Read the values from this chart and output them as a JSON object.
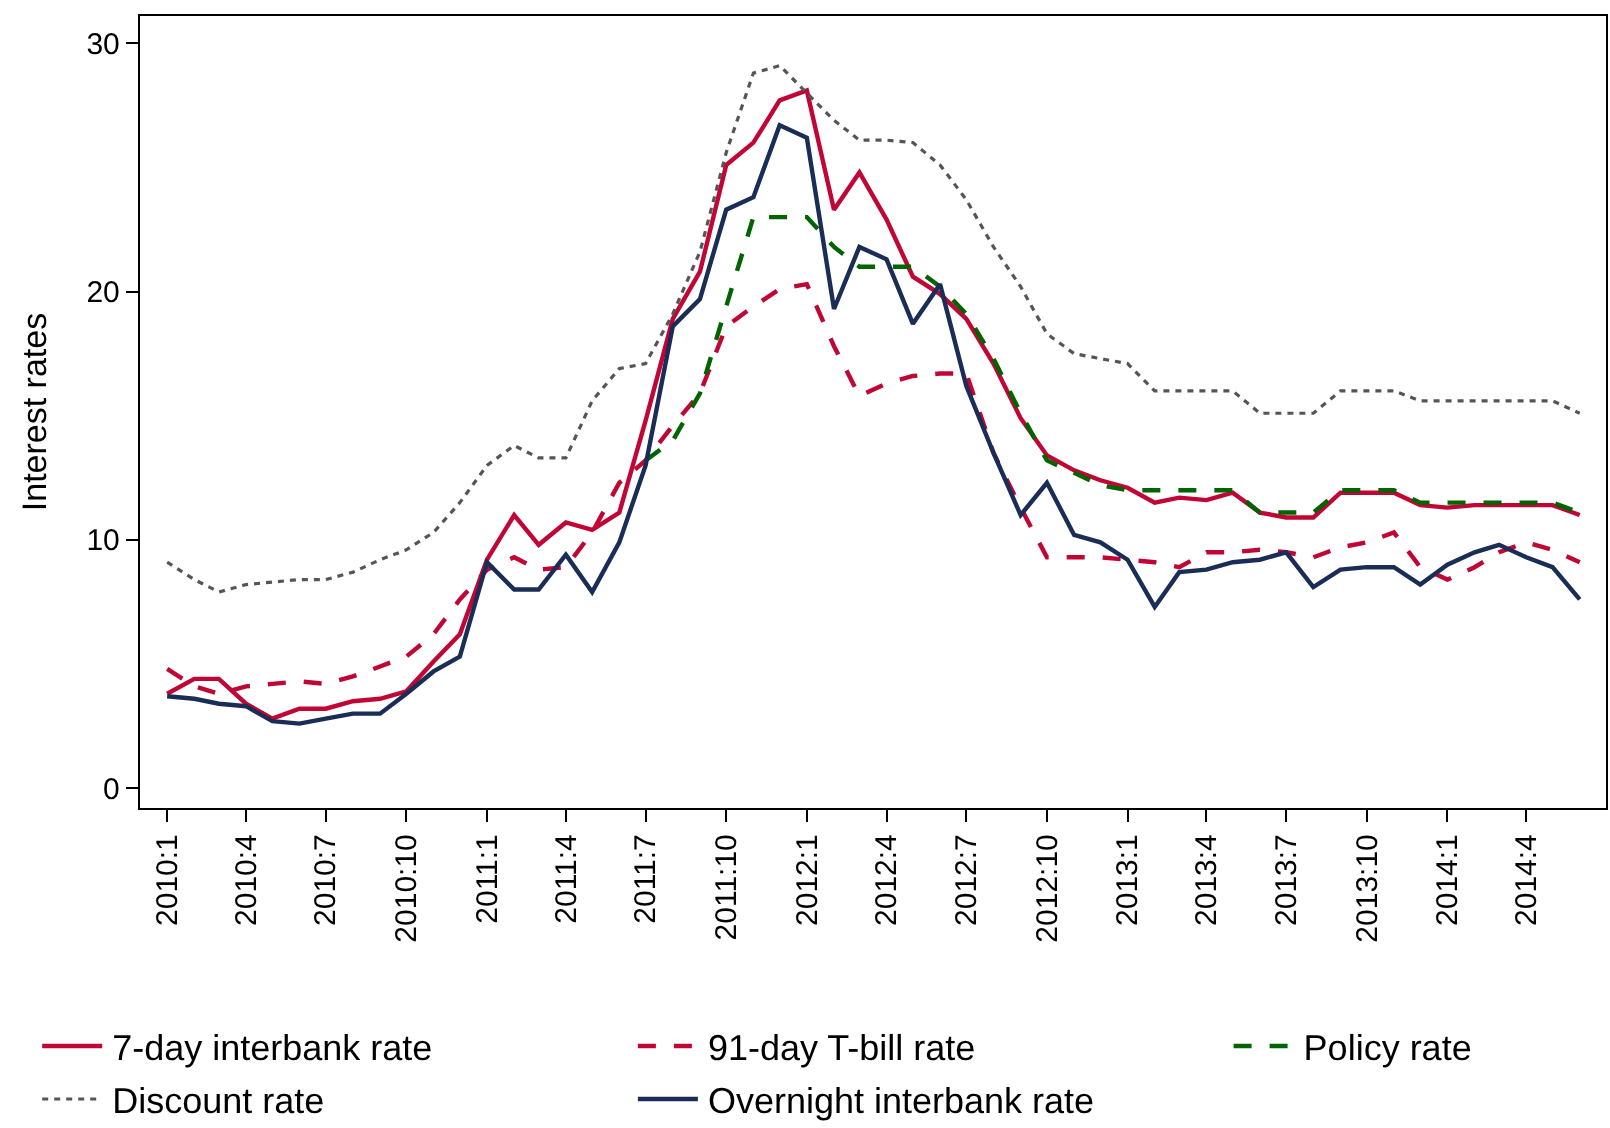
{
  "chart_data": {
    "type": "line",
    "ylabel": "Interest rates",
    "x": [
      "2010-01",
      "2010-02",
      "2010-03",
      "2010-04",
      "2010-05",
      "2010-06",
      "2010-07",
      "2010-08",
      "2010-09",
      "2010-10",
      "2010-11",
      "2010-12",
      "2011-01",
      "2011-02",
      "2011-03",
      "2011-04",
      "2011-05",
      "2011-06",
      "2011-07",
      "2011-08",
      "2011-09",
      "2011-10",
      "2011-11",
      "2011-12",
      "2012-01",
      "2012-02",
      "2012-03",
      "2012-04",
      "2012-05",
      "2012-06",
      "2012-07",
      "2012-08",
      "2012-09",
      "2012-10",
      "2012-11",
      "2012-12",
      "2013-01",
      "2013-02",
      "2013-03",
      "2013-04",
      "2013-05",
      "2013-06",
      "2013-07",
      "2013-08",
      "2013-09",
      "2013-10",
      "2013-11",
      "2013-12",
      "2014-01",
      "2014-02",
      "2014-03",
      "2014-04",
      "2014-05",
      "2014-06"
    ],
    "series": [
      {
        "name": "7-day interbank rate",
        "color": "#c10534",
        "line_style": "solid",
        "values": [
          3.8,
          4.4,
          4.4,
          3.4,
          2.8,
          3.2,
          3.2,
          3.5,
          3.6,
          3.9,
          5.1,
          6.2,
          9.2,
          11.0,
          9.8,
          10.7,
          10.4,
          11.1,
          14.8,
          18.9,
          20.8,
          25.1,
          26.0,
          27.7,
          28.1,
          23.3,
          24.8,
          22.9,
          20.6,
          19.9,
          18.9,
          17.1,
          14.9,
          13.4,
          12.8,
          12.4,
          12.1,
          11.5,
          11.7,
          11.6,
          11.9,
          11.1,
          10.9,
          10.9,
          11.9,
          11.9,
          11.9,
          11.4,
          11.3,
          11.4,
          11.4,
          11.4,
          11.4,
          11.0
        ]
      },
      {
        "name": "91-day T-bill rate",
        "color": "#c10534",
        "line_style": "dashed",
        "values": [
          4.8,
          4.1,
          3.8,
          4.1,
          4.2,
          4.3,
          4.2,
          4.5,
          4.9,
          5.3,
          6.2,
          7.6,
          8.8,
          9.3,
          8.8,
          8.9,
          10.3,
          12.3,
          13.2,
          14.6,
          15.9,
          18.6,
          19.4,
          20.1,
          20.3,
          17.8,
          15.8,
          16.3,
          16.6,
          16.7,
          16.7,
          13.5,
          11.3,
          9.3,
          9.3,
          9.3,
          9.2,
          9.1,
          8.9,
          9.5,
          9.5,
          9.6,
          9.5,
          9.3,
          9.7,
          9.9,
          10.3,
          8.9,
          8.4,
          8.9,
          9.5,
          9.9,
          9.6,
          9.1
        ]
      },
      {
        "name": "Policy rate",
        "color": "#006400",
        "line_style": "dashed",
        "values": [
          null,
          null,
          null,
          null,
          null,
          null,
          null,
          null,
          null,
          null,
          null,
          null,
          null,
          null,
          null,
          null,
          null,
          null,
          13.2,
          14.0,
          15.9,
          19.4,
          23.0,
          23.0,
          23.0,
          21.8,
          21.0,
          21.0,
          21.0,
          20.2,
          19.1,
          17.3,
          15.1,
          13.2,
          12.7,
          12.2,
          12.0,
          12.0,
          12.0,
          12.0,
          12.0,
          11.1,
          11.1,
          11.1,
          12.0,
          12.0,
          12.0,
          11.5,
          11.5,
          11.5,
          11.5,
          11.5,
          11.5,
          11.1
        ]
      },
      {
        "name": "Discount rate",
        "color": "#555555",
        "line_style": "dotted",
        "values": [
          9.1,
          8.4,
          7.9,
          8.2,
          8.3,
          8.4,
          8.4,
          8.7,
          9.2,
          9.6,
          10.3,
          11.5,
          13.0,
          13.8,
          13.3,
          13.3,
          15.6,
          16.9,
          17.1,
          19.1,
          21.6,
          25.6,
          28.8,
          29.1,
          28.0,
          26.9,
          26.1,
          26.1,
          26.0,
          25.1,
          23.7,
          21.8,
          20.2,
          18.3,
          17.5,
          17.3,
          17.1,
          16.0,
          16.0,
          16.0,
          16.0,
          15.1,
          15.1,
          15.1,
          16.0,
          16.0,
          16.0,
          15.6,
          15.6,
          15.6,
          15.6,
          15.6,
          15.6,
          15.1
        ]
      },
      {
        "name": "Overnight interbank rate",
        "color": "#1a2d56",
        "line_style": "solid",
        "values": [
          3.7,
          3.6,
          3.4,
          3.3,
          2.7,
          2.6,
          2.8,
          3.0,
          3.0,
          3.8,
          4.7,
          5.3,
          9.1,
          8.0,
          8.0,
          9.4,
          7.9,
          9.9,
          13.0,
          18.6,
          19.7,
          23.3,
          23.8,
          26.7,
          26.2,
          19.3,
          21.8,
          21.3,
          18.7,
          20.3,
          16.2,
          13.5,
          11.0,
          12.3,
          10.2,
          9.9,
          9.2,
          7.3,
          8.7,
          8.8,
          9.1,
          9.2,
          9.5,
          8.1,
          8.8,
          8.9,
          8.9,
          8.2,
          9.0,
          9.5,
          9.8,
          9.3,
          8.9,
          7.6
        ]
      }
    ],
    "xlim": [
      "2009-12-01",
      "2014-07-01"
    ],
    "xticks": [
      {
        "value": "2010-01",
        "label": "2010:1"
      },
      {
        "value": "2010-04",
        "label": "2010:4"
      },
      {
        "value": "2010-07",
        "label": "2010:7"
      },
      {
        "value": "2010-10",
        "label": "2010:10"
      },
      {
        "value": "2011-01",
        "label": "2011:1"
      },
      {
        "value": "2011-04",
        "label": "2011:4"
      },
      {
        "value": "2011-07",
        "label": "2011:7"
      },
      {
        "value": "2011-10",
        "label": "2011:10"
      },
      {
        "value": "2012-01",
        "label": "2012:1"
      },
      {
        "value": "2012-04",
        "label": "2012:4"
      },
      {
        "value": "2012-07",
        "label": "2012:7"
      },
      {
        "value": "2012-10",
        "label": "2012:10"
      },
      {
        "value": "2013-01",
        "label": "2013:1"
      },
      {
        "value": "2013-04",
        "label": "2013:4"
      },
      {
        "value": "2013-07",
        "label": "2013:7"
      },
      {
        "value": "2013-10",
        "label": "2013:10"
      },
      {
        "value": "2014-01",
        "label": "2014:1"
      },
      {
        "value": "2014-04",
        "label": "2014:4"
      }
    ],
    "ylim": [
      -0.8,
      31.1
    ],
    "yticks": [
      0,
      10,
      20,
      30
    ],
    "grid": false,
    "legend": "bottom",
    "marker": "none"
  }
}
